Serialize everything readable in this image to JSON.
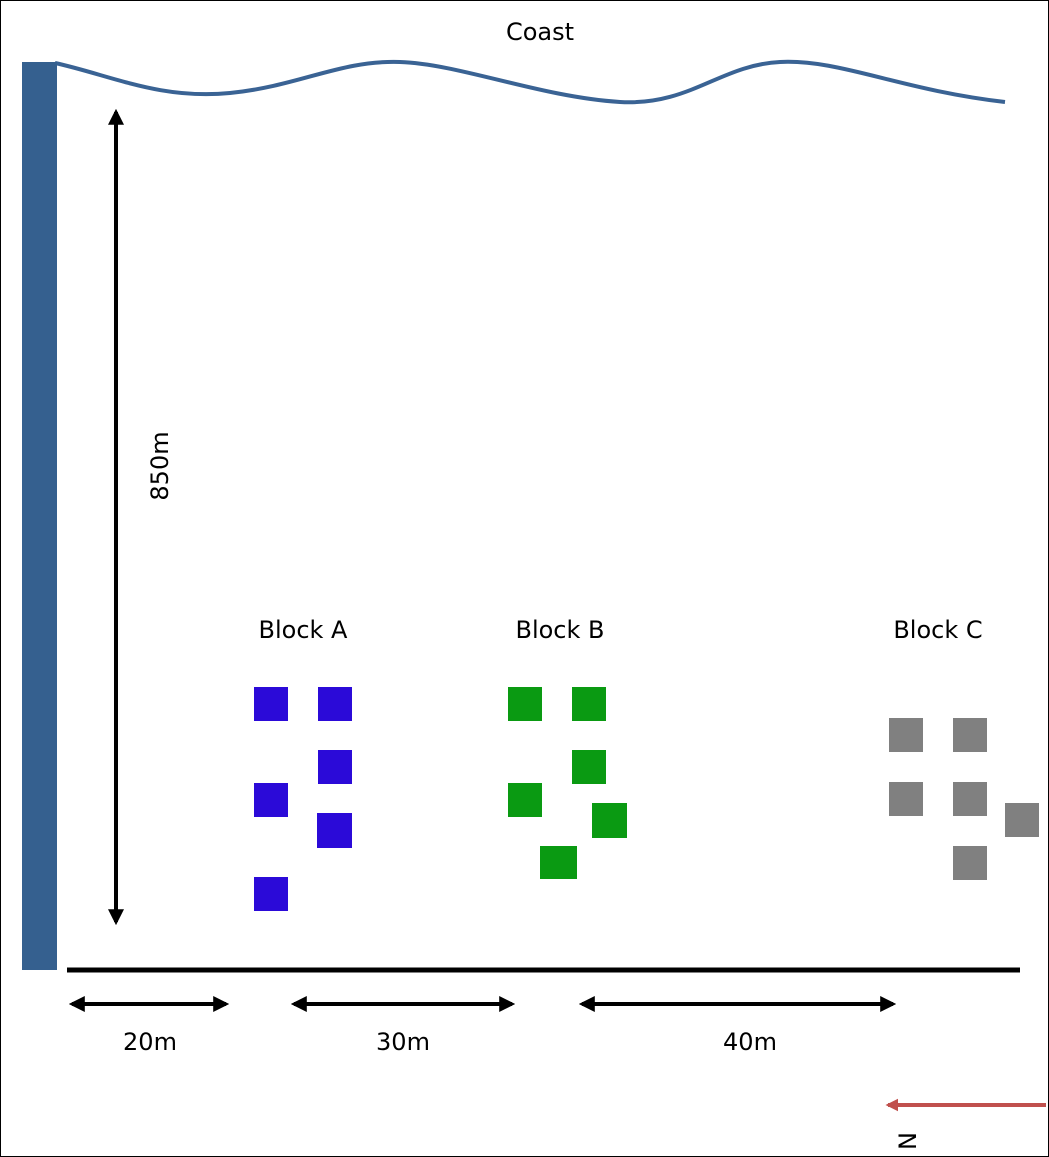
{
  "labels": {
    "coast": "Coast",
    "height": "850m",
    "block_a": "Block A",
    "block_b": "Block B",
    "block_c": "Block C",
    "gap_1": "20m",
    "gap_2": "30m",
    "gap_3": "40m",
    "north": "N"
  },
  "colors": {
    "coastline": "#3a6394",
    "wall": "#35608f",
    "block_a": "#2b0ad8",
    "block_b": "#0a9a12",
    "block_c": "#808080",
    "north_arrow": "#c0504d",
    "ink": "#000000"
  },
  "icons": {
    "north_arrow": "arrow-left-icon"
  }
}
